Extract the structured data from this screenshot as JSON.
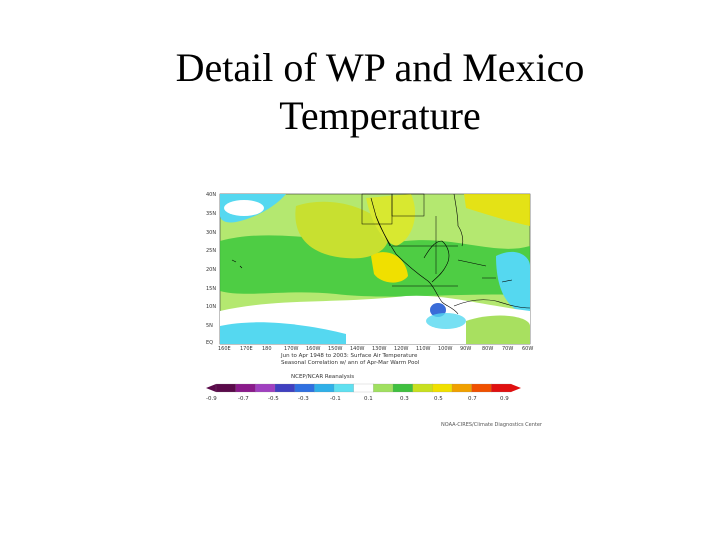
{
  "slide": {
    "title_line1": "Detail of WP and Mexico",
    "title_line2": "Temperature"
  },
  "map": {
    "lat_labels": [
      "40N",
      "35N",
      "30N",
      "25N",
      "20N",
      "15N",
      "10N",
      "5N",
      "EQ"
    ],
    "lon_labels": [
      "160E",
      "170E",
      "180",
      "170W",
      "160W",
      "150W",
      "140W",
      "130W",
      "120W",
      "110W",
      "100W",
      "90W",
      "80W",
      "70W",
      "60W"
    ],
    "caption_line1": "Jun to Apr 1948 to 2003: Surface Air Temperature",
    "caption_line2": "Seasonal Correlation w/ ann of Apr-Mar Warm Pool",
    "source_label": "NCEP/NCAR Reanalysis",
    "credit": "NOAA-CIRES/Climate Diagnostics Center",
    "colorbar": {
      "labels": [
        "-0.9",
        "-0.7",
        "-0.5",
        "-0.3",
        "-0.1",
        "0.1",
        "0.3",
        "0.5",
        "0.7",
        "0.9"
      ],
      "colors": [
        "#5a0a4a",
        "#8a1a8a",
        "#a040c0",
        "#4040c0",
        "#3070e0",
        "#30b0e8",
        "#60e0f0",
        "#ffffff",
        "#a0e060",
        "#40c040",
        "#c8e020",
        "#f0e000",
        "#f0a000",
        "#f05000",
        "#e01010"
      ]
    },
    "field_colors": {
      "ocean": "#ffffff",
      "cyan": "#55d8f0",
      "light_green": "#a8e060",
      "green": "#3cc83c",
      "yellow_green": "#c8e030",
      "yellow": "#f0e000",
      "blue": "#3a6cd8",
      "land_line": "#000000"
    }
  }
}
